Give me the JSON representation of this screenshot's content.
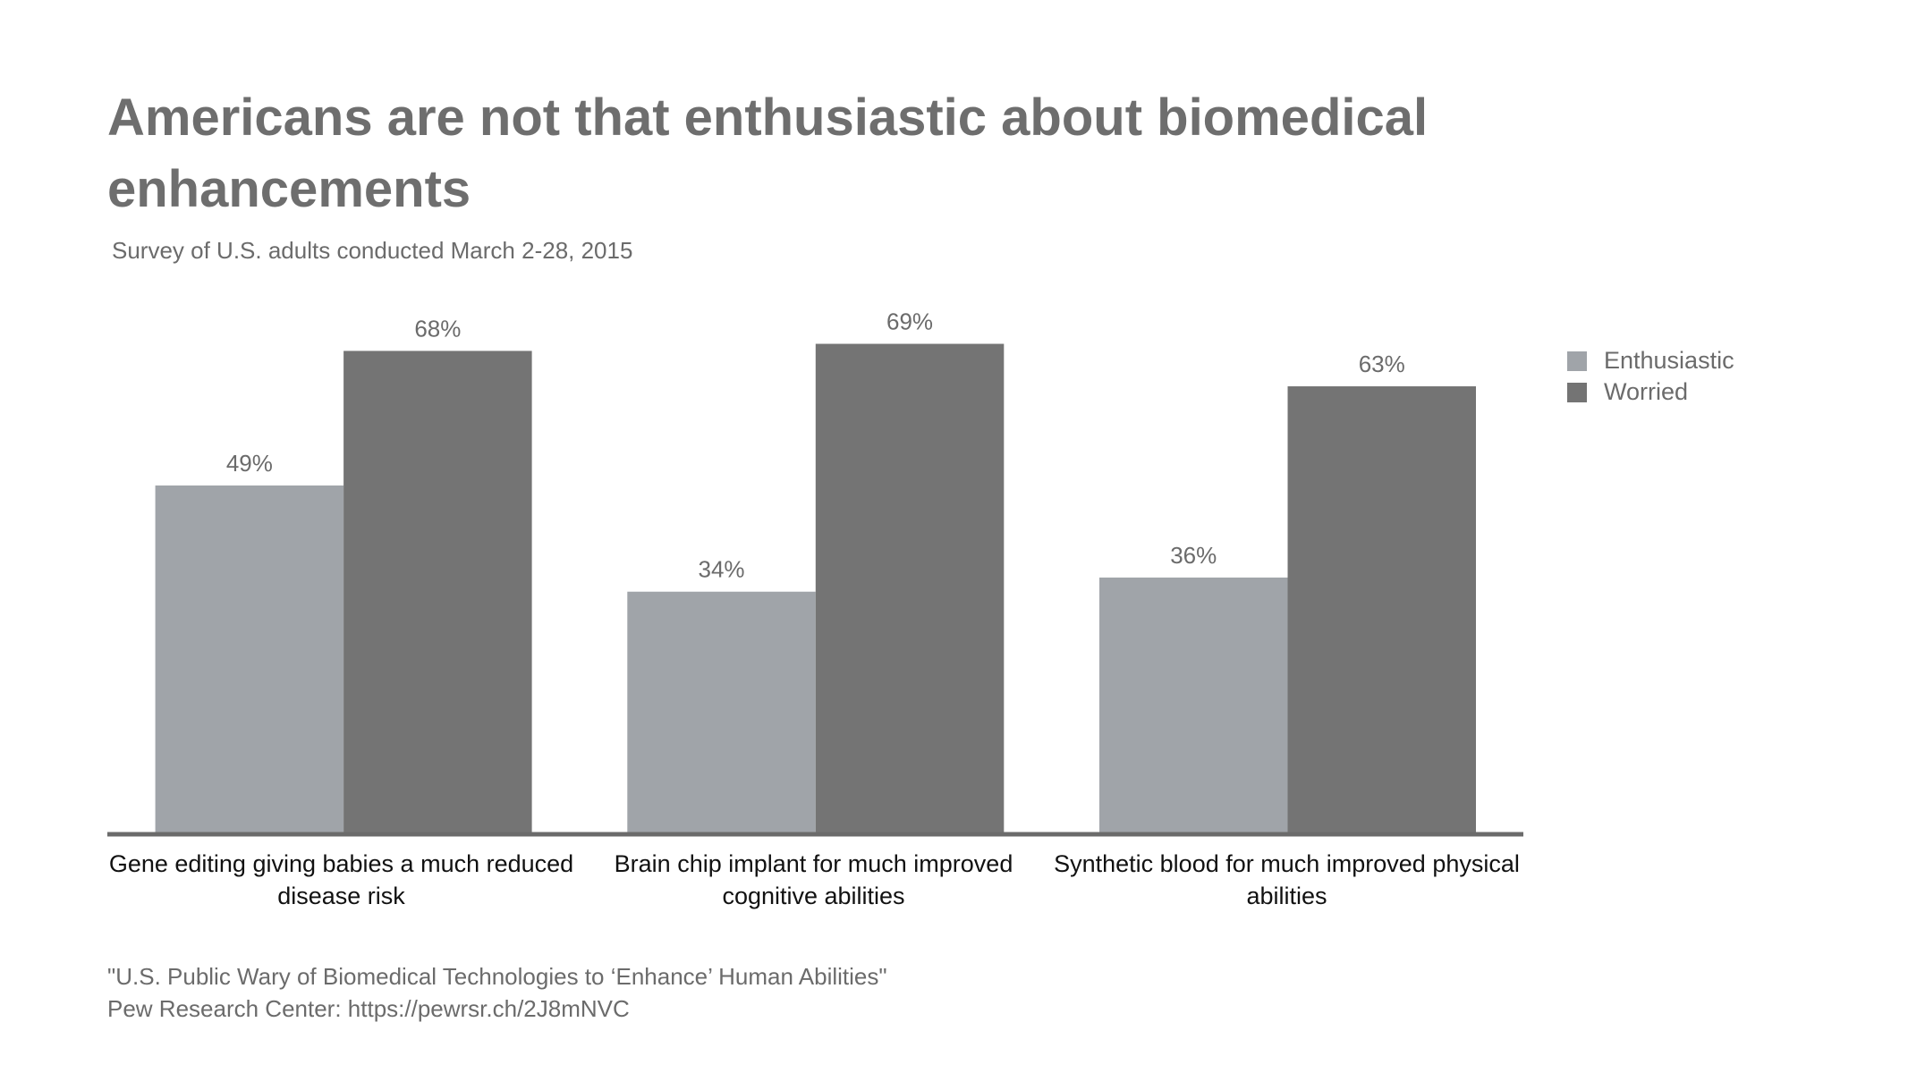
{
  "chart_data": {
    "type": "bar",
    "title": "Americans are not that enthusiastic about biomedical enhancements",
    "subtitle": "Survey of U.S. adults conducted March 2-28, 2015",
    "categories": [
      "Gene editing giving babies a much reduced disease risk",
      "Brain chip implant for much improved cognitive abilities",
      "Synthetic blood for much improved physical abilities"
    ],
    "series": [
      {
        "name": "Enthusiastic",
        "values": [
          49,
          34,
          36
        ],
        "labels": [
          "49%",
          "34%",
          "36%"
        ],
        "color": "#a0a4a9"
      },
      {
        "name": "Worried",
        "values": [
          68,
          69,
          63
        ],
        "labels": [
          "68%",
          "69%",
          "63%"
        ],
        "color": "#747474"
      }
    ],
    "xlabel": "",
    "ylabel": "",
    "ylim": [
      0,
      100
    ],
    "grid": false,
    "legend_position": "top-right"
  },
  "source": {
    "line1": "\"U.S. Public Wary of Biomedical Technologies to ‘Enhance’ Human Abilities\"",
    "line2": "Pew Research Center: https://pewrsr.ch/2J8mNVC"
  }
}
